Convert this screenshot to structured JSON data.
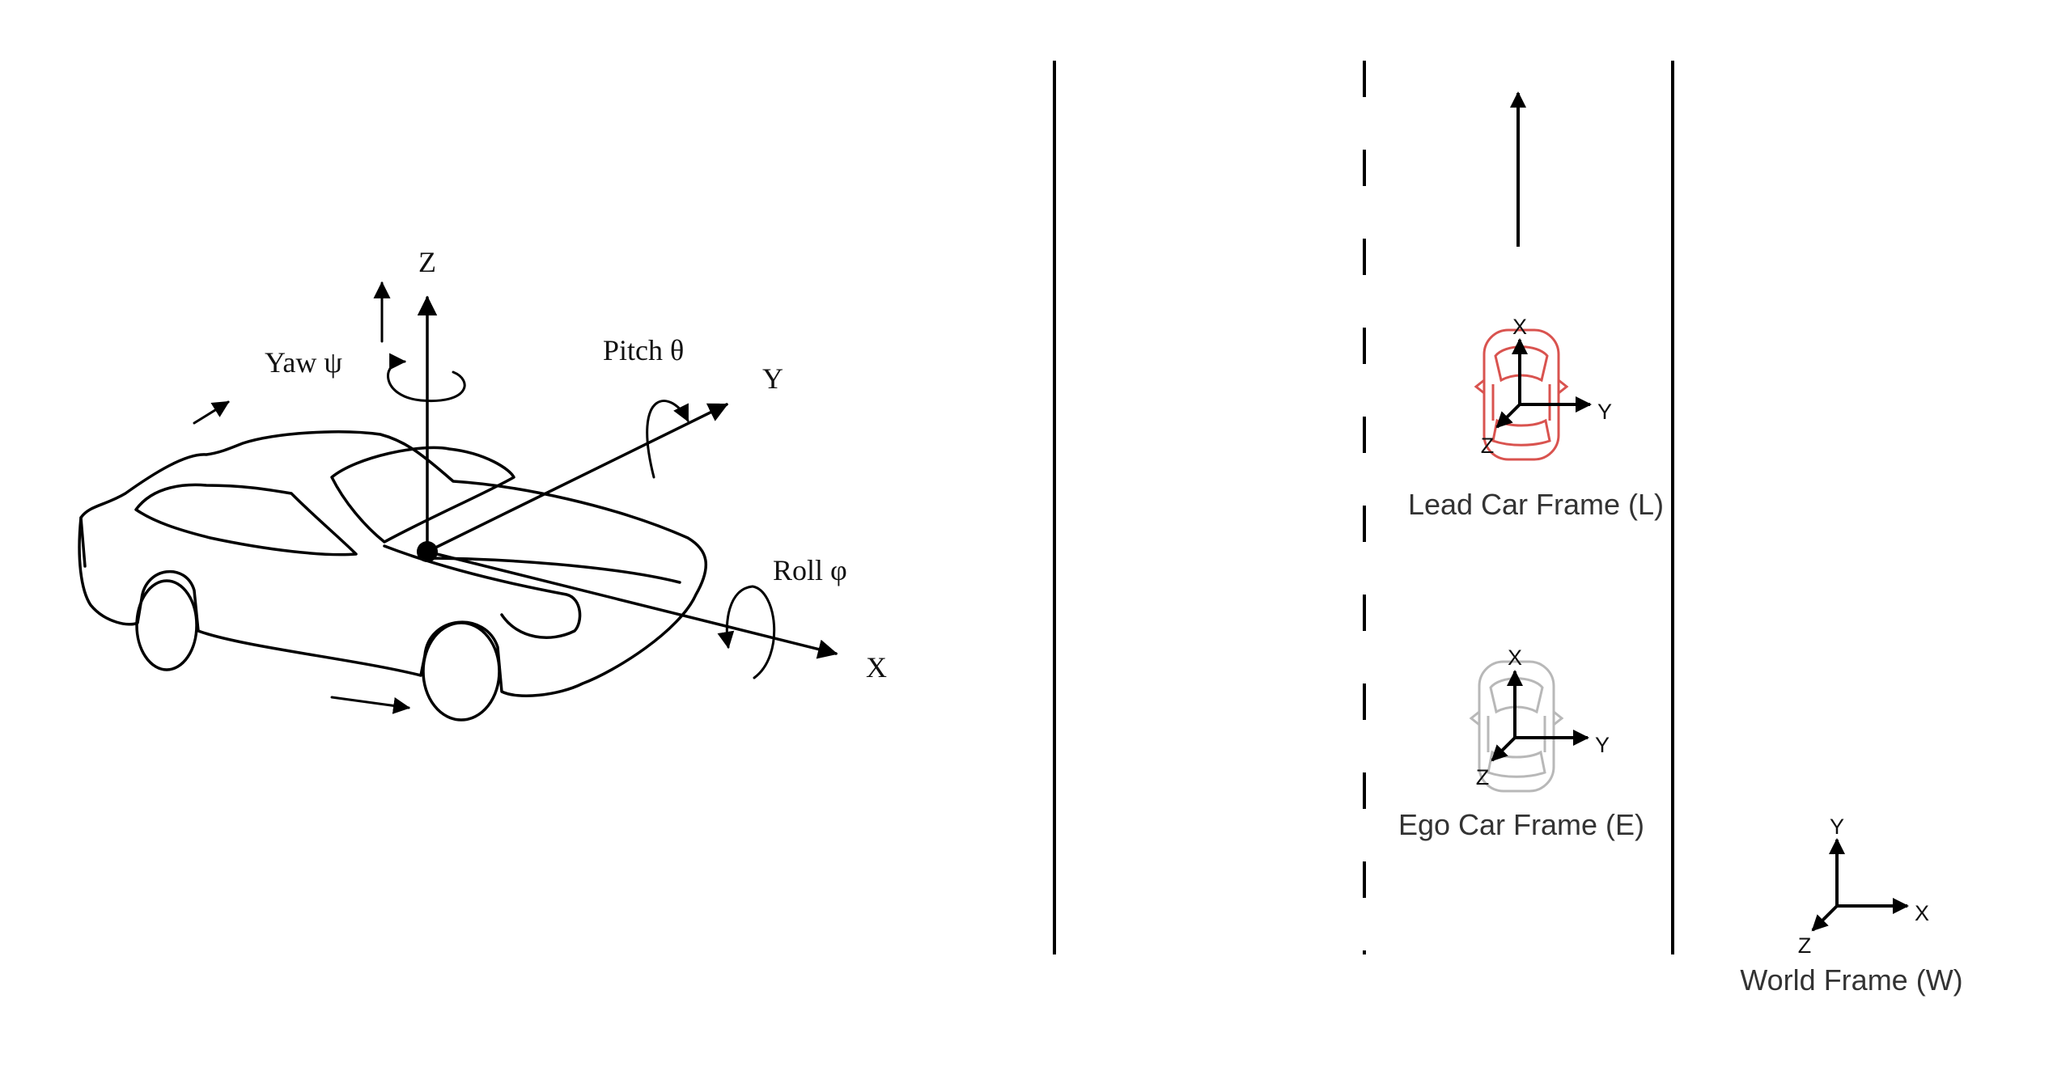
{
  "vehicle_diagram": {
    "axis_z": "Z",
    "axis_y": "Y",
    "axis_x": "X",
    "yaw_label": "Yaw  ψ",
    "pitch_label": "Pitch  θ",
    "roll_label": "Roll  φ"
  },
  "road_diagram": {
    "lead_car": {
      "label": "Lead Car Frame (L)",
      "axis_x": "X",
      "axis_y": "Y",
      "axis_z": "Z",
      "color": "#d9534f"
    },
    "ego_car": {
      "label": "Ego Car Frame (E)",
      "axis_x": "X",
      "axis_y": "Y",
      "axis_z": "Z",
      "color": "#b8b8b8"
    },
    "world_frame": {
      "label": "World Frame (W)",
      "axis_x": "X",
      "axis_y": "Y",
      "axis_z": "Z"
    }
  }
}
